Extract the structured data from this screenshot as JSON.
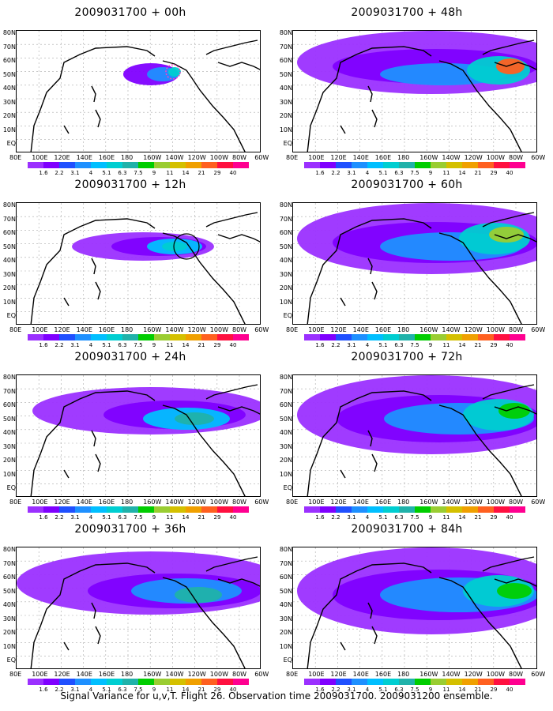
{
  "caption": "Signal Variance for u,v,T. Flight 26. Observation time 2009031700. 2009031200 ensemble.",
  "lat_labels": [
    "80N",
    "70N",
    "60N",
    "50N",
    "40N",
    "30N",
    "20N",
    "10N",
    "EQ"
  ],
  "lon_labels": [
    "80E",
    "100E",
    "120E",
    "140E",
    "160E",
    "180",
    "160W",
    "140W",
    "120W",
    "100W",
    "80W",
    "60W"
  ],
  "colorbar": {
    "labels": [
      "1.6",
      "2.2",
      "3.1",
      "4",
      "5.1",
      "6.3",
      "7.5",
      "9",
      "11",
      "14",
      "21",
      "29",
      "40"
    ],
    "colors": [
      "#9b30ff",
      "#7f00ff",
      "#2050ff",
      "#1e90ff",
      "#00bfff",
      "#00ced1",
      "#20b2aa",
      "#00cd00",
      "#9acd32",
      "#d4c000",
      "#f0a000",
      "#ff6020",
      "#ff1040",
      "#ff0090"
    ]
  },
  "panels": [
    {
      "title": "2009031700 + 00h",
      "lead": "00h"
    },
    {
      "title": "2009031700 + 12h",
      "lead": "12h"
    },
    {
      "title": "2009031700 + 24h",
      "lead": "24h"
    },
    {
      "title": "2009031700 + 36h",
      "lead": "36h"
    },
    {
      "title": "2009031700 + 48h",
      "lead": "48h"
    },
    {
      "title": "2009031700 + 60h",
      "lead": "60h"
    },
    {
      "title": "2009031700 + 72h",
      "lead": "72h"
    },
    {
      "title": "2009031700 + 84h",
      "lead": "84h"
    }
  ]
}
